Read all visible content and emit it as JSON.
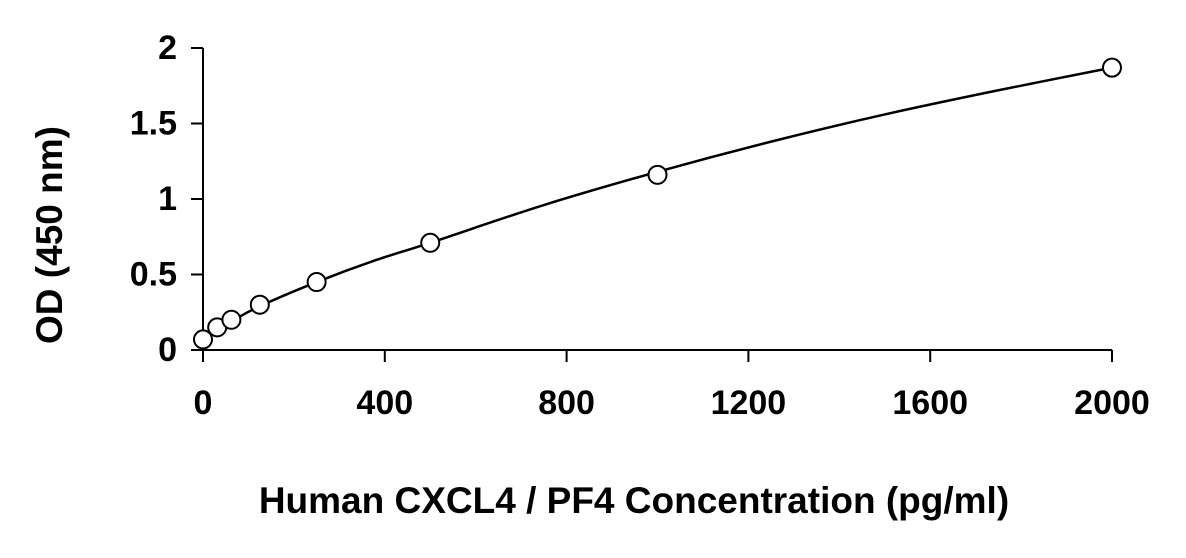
{
  "chart_data": {
    "type": "scatter",
    "title": "",
    "xlabel": "Human CXCL4 / PF4 Concentration (pg/ml)",
    "ylabel": "OD (450 nm)",
    "xlim": [
      0,
      2000
    ],
    "ylim": [
      0,
      2
    ],
    "xticks": [
      0,
      400,
      800,
      1200,
      1600,
      2000
    ],
    "xtick_labels": [
      "0",
      "400",
      "800",
      "1200",
      "1600",
      "2000"
    ],
    "yticks": [
      0,
      0.5,
      1,
      1.5,
      2
    ],
    "ytick_labels": [
      "0",
      "0.5",
      "1",
      "1.5",
      "2"
    ],
    "grid": false,
    "legend": "none",
    "series": [
      {
        "marker": "open-circle",
        "x": [
          0,
          31.25,
          62.5,
          125,
          250,
          500,
          1000,
          2000
        ],
        "y": [
          0.07,
          0.15,
          0.2,
          0.3,
          0.45,
          0.71,
          1.16,
          1.87
        ]
      }
    ],
    "fit_curve": {
      "style": "solid-line",
      "x": [
        0,
        62.5,
        125,
        250,
        375,
        500,
        750,
        1000,
        1250,
        1500,
        1750,
        2000
      ],
      "y": [
        0.08,
        0.19,
        0.29,
        0.45,
        0.59,
        0.71,
        0.96,
        1.18,
        1.38,
        1.56,
        1.72,
        1.87
      ]
    },
    "colors": {
      "axis": "#000000",
      "marker": "#000000",
      "curve": "#000000"
    }
  }
}
